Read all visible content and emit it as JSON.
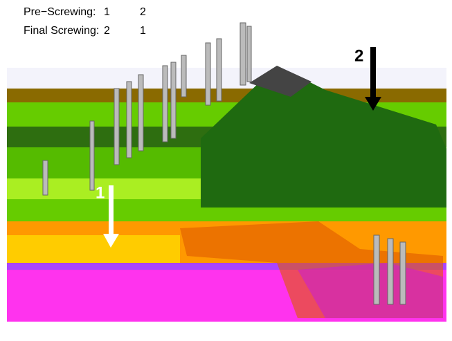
{
  "instructions": [
    {
      "label": "Pre−Screwing:",
      "steps": [
        1,
        2
      ]
    },
    {
      "label": "Final Screwing:",
      "steps": [
        2,
        1
      ]
    }
  ],
  "arrows": [
    {
      "label": "2"
    },
    {
      "label": "1"
    }
  ]
}
